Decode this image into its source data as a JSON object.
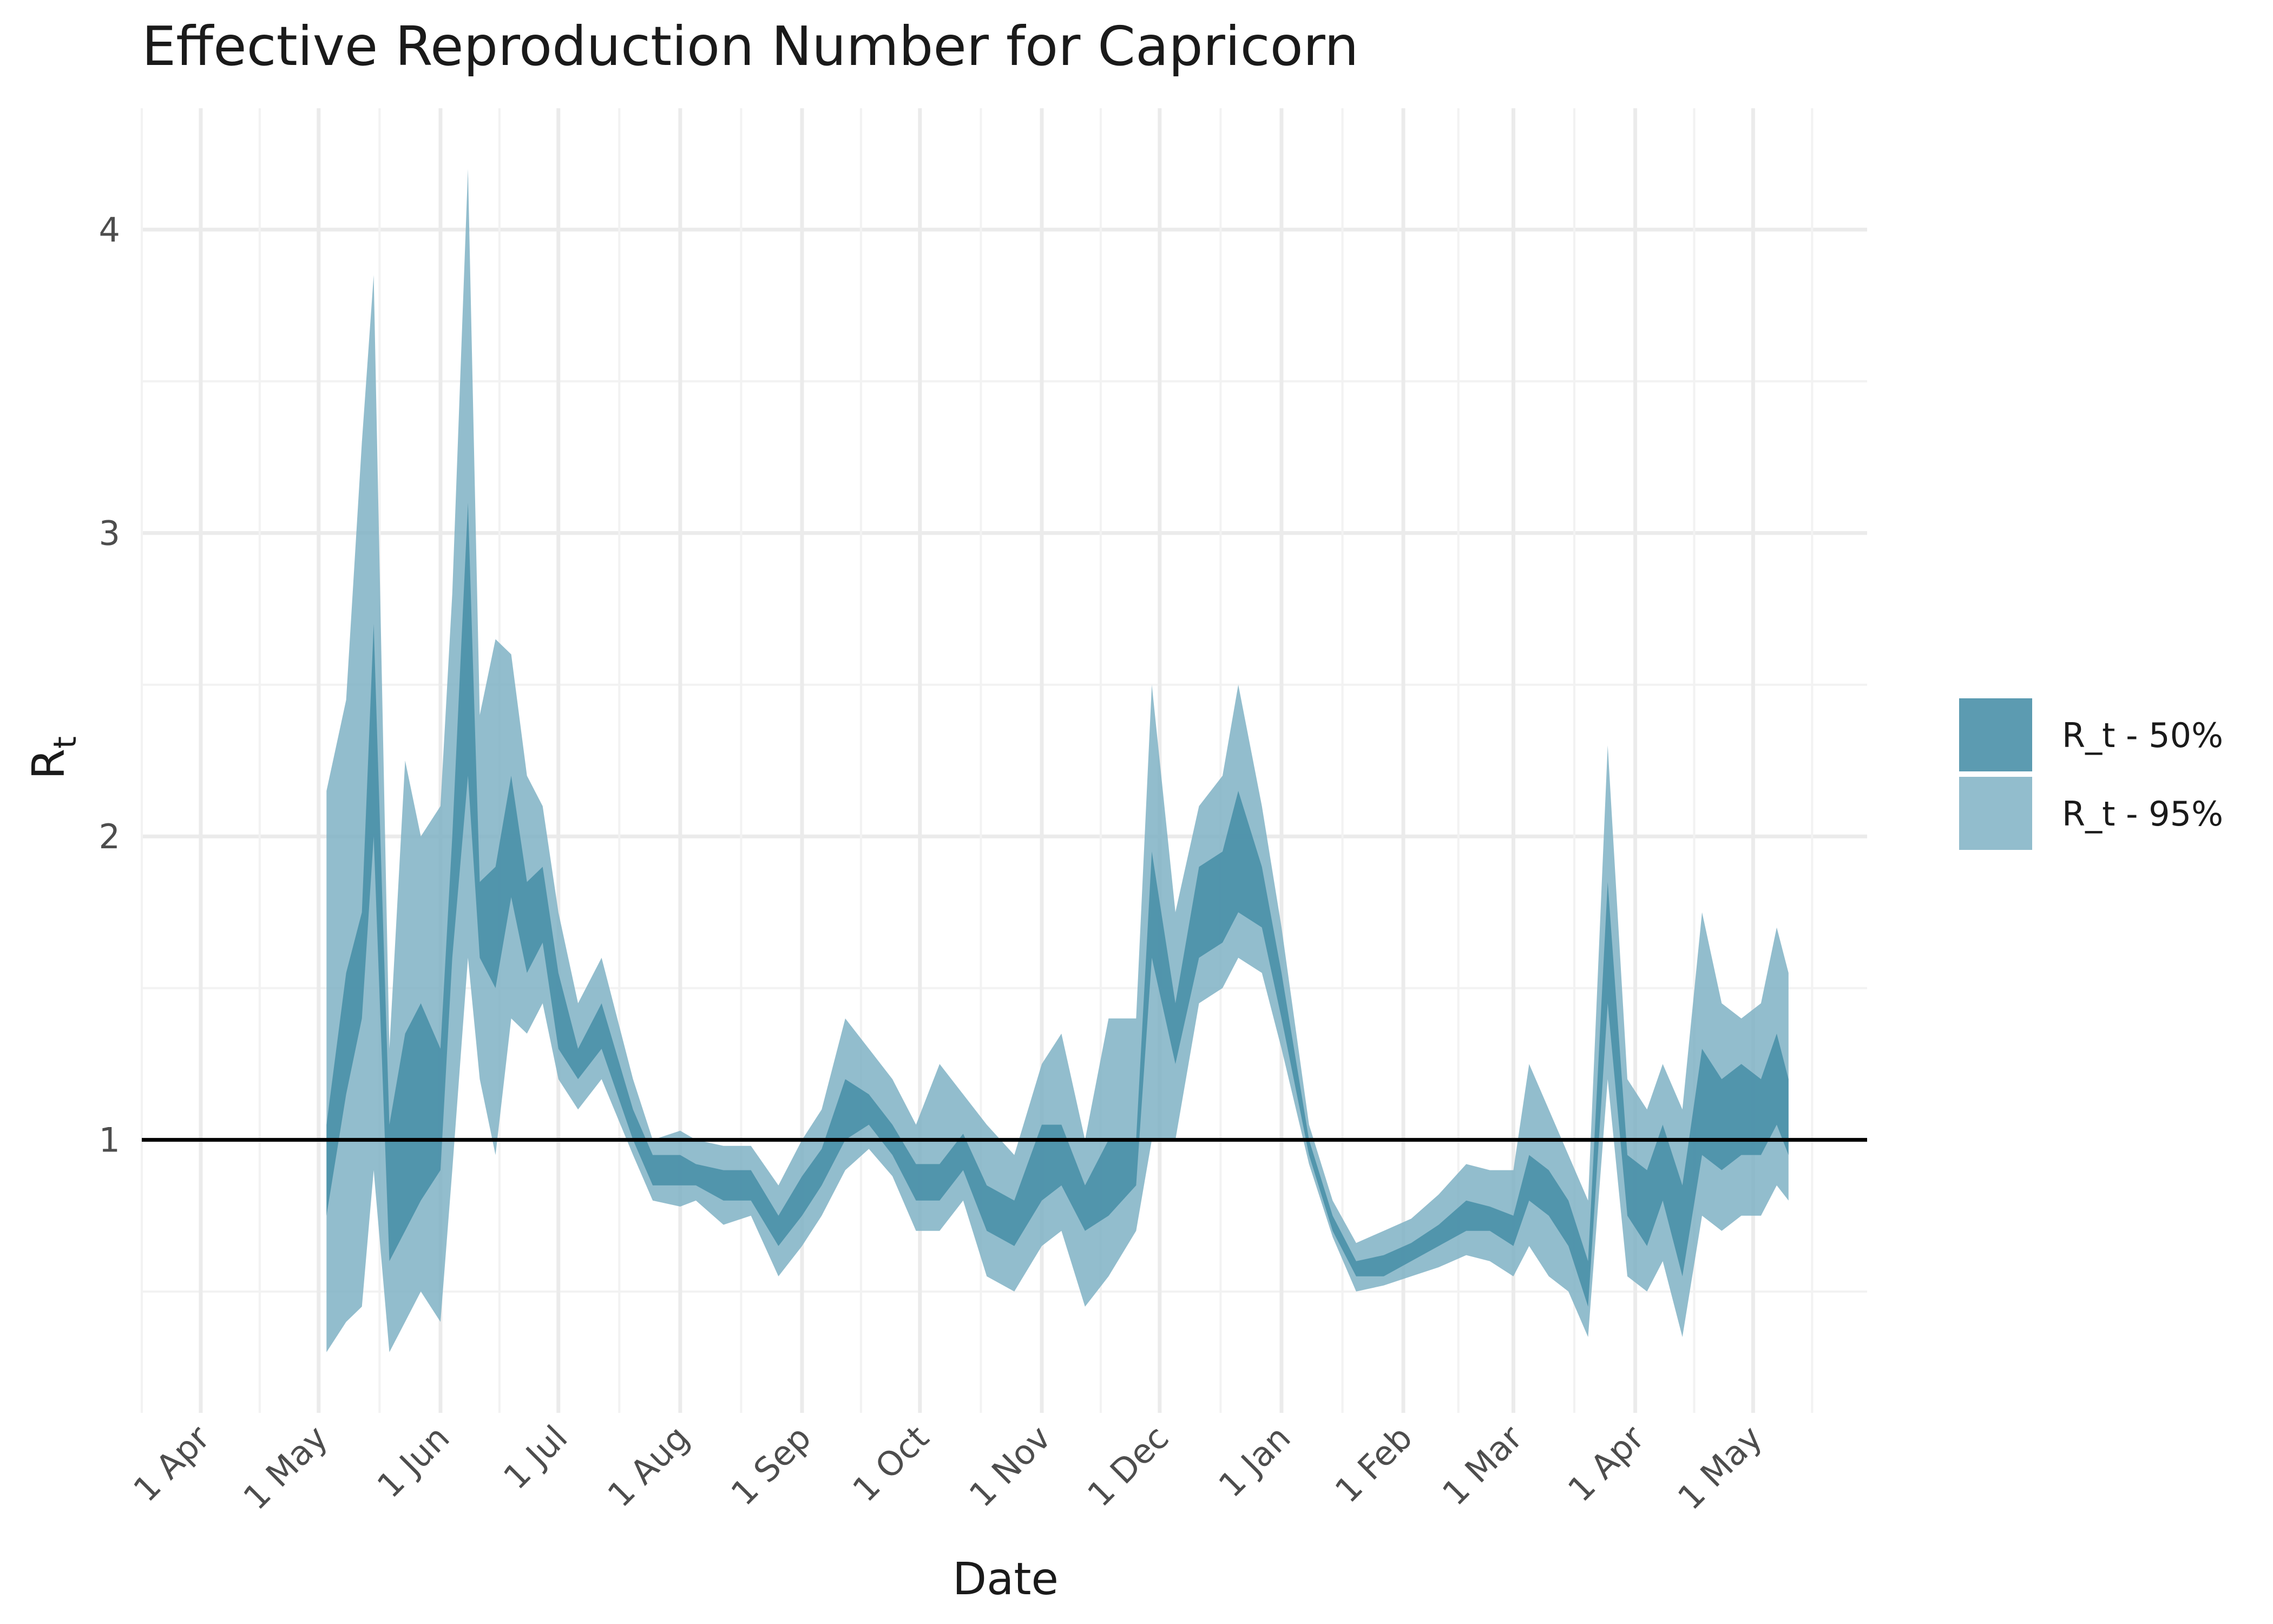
{
  "chart_data": {
    "type": "area",
    "title": "Effective Reproduction Number for Capricorn",
    "xlabel": "Date",
    "ylabel": "R",
    "ylabel_subscript": "t",
    "x_ticks": [
      "2020-04-01",
      "2020-05-01",
      "2020-06-01",
      "2020-07-01",
      "2020-08-01",
      "2020-09-01",
      "2020-10-01",
      "2020-11-01",
      "2020-12-01",
      "2021-01-01",
      "2021-02-01",
      "2021-03-01",
      "2021-04-01",
      "2021-05-01"
    ],
    "x_tick_labels": [
      "1 Apr",
      "1 May",
      "1 Jun",
      "1 Jul",
      "1 Aug",
      "1 Sep",
      "1 Oct",
      "1 Nov",
      "1 Dec",
      "1 Jan",
      "1 Feb",
      "1 Mar",
      "1 Apr",
      "1 May"
    ],
    "xlim": [
      "2020-03-17",
      "2021-05-30"
    ],
    "y_ticks": [
      1,
      2,
      3,
      4
    ],
    "ylim": [
      0.1,
      4.4
    ],
    "reference_line": 1,
    "grid": true,
    "legend_position": "right",
    "colors": {
      "band50": "#4a90a8",
      "band95": "#7fb2c4",
      "ref_line": "#000000"
    },
    "series": [
      {
        "name": "R_t - 50%",
        "band": true,
        "x": [
          "2020-05-03",
          "2020-05-08",
          "2020-05-12",
          "2020-05-15",
          "2020-05-19",
          "2020-05-23",
          "2020-05-27",
          "2020-06-01",
          "2020-06-04",
          "2020-06-08",
          "2020-06-11",
          "2020-06-15",
          "2020-06-19",
          "2020-06-23",
          "2020-06-27",
          "2020-07-01",
          "2020-07-06",
          "2020-07-12",
          "2020-07-20",
          "2020-07-25",
          "2020-08-01",
          "2020-08-05",
          "2020-08-12",
          "2020-08-19",
          "2020-08-26",
          "2020-09-01",
          "2020-09-06",
          "2020-09-12",
          "2020-09-18",
          "2020-09-24",
          "2020-09-30",
          "2020-10-06",
          "2020-10-12",
          "2020-10-18",
          "2020-10-25",
          "2020-11-01",
          "2020-11-06",
          "2020-11-12",
          "2020-11-18",
          "2020-11-25",
          "2020-11-29",
          "2020-12-05",
          "2020-12-11",
          "2020-12-17",
          "2020-12-21",
          "2020-12-27",
          "2021-01-01",
          "2021-01-08",
          "2021-01-14",
          "2021-01-20",
          "2021-01-27",
          "2021-02-03",
          "2021-02-10",
          "2021-02-17",
          "2021-02-23",
          "2021-03-01",
          "2021-03-05",
          "2021-03-10",
          "2021-03-15",
          "2021-03-20",
          "2021-03-25",
          "2021-03-30",
          "2021-04-04",
          "2021-04-08",
          "2021-04-13",
          "2021-04-18",
          "2021-04-23",
          "2021-04-28",
          "2021-05-03",
          "2021-05-07",
          "2021-05-10"
        ],
        "lower": [
          0.75,
          1.15,
          1.4,
          2.0,
          0.6,
          0.7,
          0.8,
          0.9,
          1.6,
          2.2,
          1.6,
          1.5,
          1.8,
          1.55,
          1.65,
          1.3,
          1.2,
          1.3,
          1.0,
          0.85,
          0.85,
          0.85,
          0.8,
          0.8,
          0.65,
          0.75,
          0.85,
          1.0,
          1.05,
          0.95,
          0.8,
          0.8,
          0.9,
          0.7,
          0.65,
          0.8,
          0.85,
          0.7,
          0.75,
          0.85,
          1.6,
          1.25,
          1.6,
          1.65,
          1.75,
          1.7,
          1.4,
          0.95,
          0.7,
          0.55,
          0.55,
          0.6,
          0.65,
          0.7,
          0.7,
          0.65,
          0.8,
          0.75,
          0.65,
          0.45,
          1.45,
          0.75,
          0.65,
          0.8,
          0.55,
          0.95,
          0.9,
          0.95,
          0.95,
          1.05,
          0.95
        ],
        "upper": [
          1.05,
          1.55,
          1.75,
          2.7,
          1.05,
          1.35,
          1.45,
          1.3,
          2.0,
          3.1,
          1.85,
          1.9,
          2.2,
          1.85,
          1.9,
          1.55,
          1.3,
          1.45,
          1.1,
          0.95,
          0.95,
          0.92,
          0.9,
          0.9,
          0.75,
          0.88,
          0.97,
          1.2,
          1.15,
          1.05,
          0.92,
          0.92,
          1.02,
          0.85,
          0.8,
          1.05,
          1.05,
          0.85,
          1.0,
          1.0,
          1.95,
          1.45,
          1.9,
          1.95,
          2.15,
          1.9,
          1.55,
          1.0,
          0.75,
          0.6,
          0.62,
          0.66,
          0.72,
          0.8,
          0.78,
          0.75,
          0.95,
          0.9,
          0.8,
          0.6,
          1.85,
          0.95,
          0.9,
          1.05,
          0.85,
          1.3,
          1.2,
          1.25,
          1.2,
          1.35,
          1.2
        ]
      },
      {
        "name": "R_t - 95%",
        "band": true,
        "x": [
          "2020-05-03",
          "2020-05-08",
          "2020-05-12",
          "2020-05-15",
          "2020-05-19",
          "2020-05-23",
          "2020-05-27",
          "2020-06-01",
          "2020-06-04",
          "2020-06-08",
          "2020-06-11",
          "2020-06-15",
          "2020-06-19",
          "2020-06-23",
          "2020-06-27",
          "2020-07-01",
          "2020-07-06",
          "2020-07-12",
          "2020-07-20",
          "2020-07-25",
          "2020-08-01",
          "2020-08-05",
          "2020-08-12",
          "2020-08-19",
          "2020-08-26",
          "2020-09-01",
          "2020-09-06",
          "2020-09-12",
          "2020-09-18",
          "2020-09-24",
          "2020-09-30",
          "2020-10-06",
          "2020-10-12",
          "2020-10-18",
          "2020-10-25",
          "2020-11-01",
          "2020-11-06",
          "2020-11-12",
          "2020-11-18",
          "2020-11-25",
          "2020-11-29",
          "2020-12-05",
          "2020-12-11",
          "2020-12-17",
          "2020-12-21",
          "2020-12-27",
          "2021-01-01",
          "2021-01-08",
          "2021-01-14",
          "2021-01-20",
          "2021-01-27",
          "2021-02-03",
          "2021-02-10",
          "2021-02-17",
          "2021-02-23",
          "2021-03-01",
          "2021-03-05",
          "2021-03-10",
          "2021-03-15",
          "2021-03-20",
          "2021-03-25",
          "2021-03-30",
          "2021-04-04",
          "2021-04-08",
          "2021-04-13",
          "2021-04-18",
          "2021-04-23",
          "2021-04-28",
          "2021-05-03",
          "2021-05-07",
          "2021-05-10"
        ],
        "lower": [
          0.3,
          0.4,
          0.45,
          0.9,
          0.3,
          0.4,
          0.5,
          0.4,
          0.9,
          1.6,
          1.2,
          0.95,
          1.4,
          1.35,
          1.45,
          1.2,
          1.1,
          1.2,
          0.95,
          0.8,
          0.78,
          0.8,
          0.72,
          0.75,
          0.55,
          0.65,
          0.75,
          0.9,
          0.97,
          0.88,
          0.7,
          0.7,
          0.8,
          0.55,
          0.5,
          0.65,
          0.7,
          0.45,
          0.55,
          0.7,
          1.0,
          1.0,
          1.45,
          1.5,
          1.6,
          1.55,
          1.3,
          0.92,
          0.68,
          0.5,
          0.52,
          0.55,
          0.58,
          0.62,
          0.6,
          0.55,
          0.65,
          0.55,
          0.5,
          0.35,
          1.2,
          0.55,
          0.5,
          0.6,
          0.35,
          0.75,
          0.7,
          0.75,
          0.75,
          0.85,
          0.8
        ],
        "upper": [
          2.15,
          2.45,
          3.3,
          3.85,
          1.3,
          2.25,
          2.0,
          2.1,
          2.8,
          4.2,
          2.4,
          2.65,
          2.6,
          2.2,
          2.1,
          1.75,
          1.45,
          1.6,
          1.2,
          1.0,
          1.03,
          1.0,
          0.98,
          0.98,
          0.85,
          1.0,
          1.1,
          1.4,
          1.3,
          1.2,
          1.05,
          1.25,
          1.15,
          1.05,
          0.95,
          1.25,
          1.35,
          1.0,
          1.4,
          1.4,
          2.5,
          1.75,
          2.1,
          2.2,
          2.5,
          2.1,
          1.7,
          1.05,
          0.8,
          0.66,
          0.7,
          0.74,
          0.82,
          0.92,
          0.9,
          0.9,
          1.25,
          1.1,
          0.95,
          0.8,
          2.3,
          1.2,
          1.1,
          1.25,
          1.1,
          1.75,
          1.45,
          1.4,
          1.45,
          1.7,
          1.55
        ]
      }
    ]
  }
}
